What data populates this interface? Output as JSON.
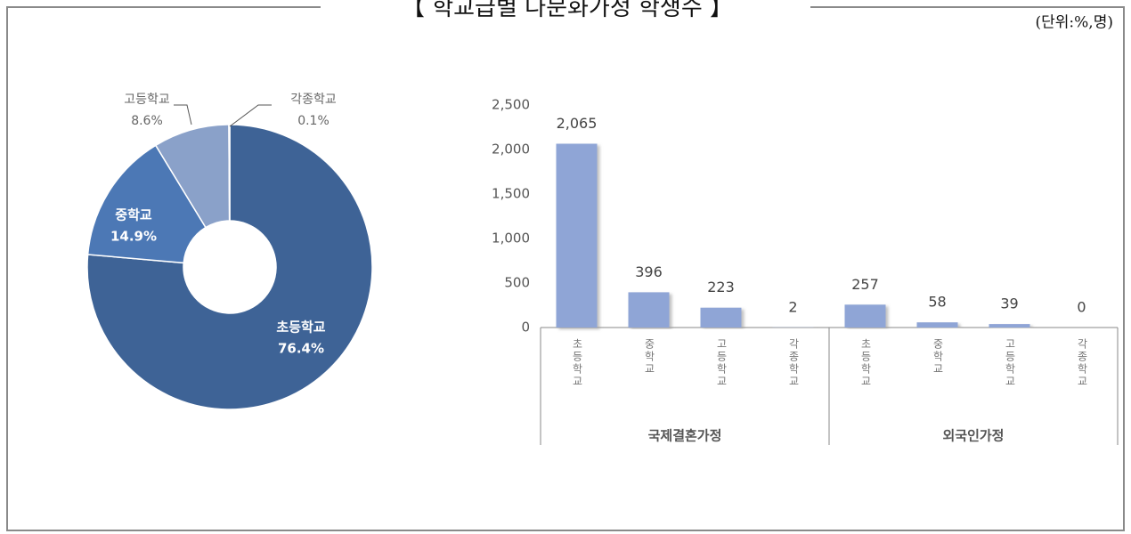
{
  "title": "【 학교급별 다문화가정 학생수 】",
  "unit": "(단위:%,명)",
  "chart_data": [
    {
      "type": "donut",
      "categories": [
        "초등학교",
        "중학교",
        "고등학교",
        "각종학교"
      ],
      "values": [
        76.4,
        14.9,
        8.6,
        0.1
      ],
      "value_labels": [
        "76.4%",
        "14.9%",
        "8.6%",
        "0.1%"
      ],
      "colors": [
        "#3e6396",
        "#4c78b5",
        "#8aa1c9",
        "#c9d4e8"
      ]
    },
    {
      "type": "bar",
      "categories": [
        "초등학교",
        "중학교",
        "고등학교",
        "각종학교",
        "초등학교",
        "중학교",
        "고등학교",
        "각종학교"
      ],
      "groups": [
        "국제결혼가정",
        "외국인가정"
      ],
      "values": [
        2065,
        396,
        223,
        2,
        257,
        58,
        39,
        0
      ],
      "value_labels": [
        "2,065",
        "396",
        "223",
        "2",
        "257",
        "58",
        "39",
        "0"
      ],
      "color": "#8fa5d6",
      "ylim": [
        0,
        2500
      ],
      "yticks": [
        0,
        500,
        {
          "value": 1000,
          "label": "1,000"
        },
        {
          "value": 1500,
          "label": "1,500"
        },
        {
          "value": 2000,
          "label": "2,000"
        },
        {
          "value": 2500,
          "label": "2,500"
        }
      ],
      "grid": false
    }
  ]
}
